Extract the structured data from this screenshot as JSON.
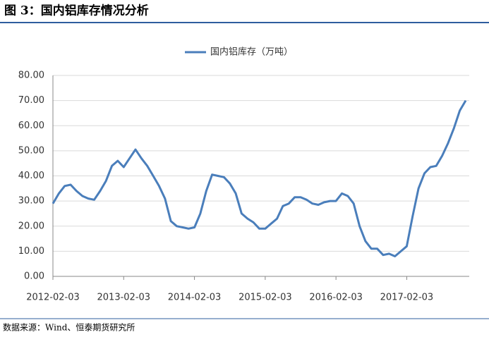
{
  "chart_data": {
    "type": "line",
    "title": "图 3：国内铝库存情况分析",
    "source": "数据来源：Wind、恒泰期货研究所",
    "categories": [
      "2012-02-03",
      null,
      null,
      null,
      null,
      null,
      null,
      null,
      null,
      null,
      null,
      null,
      "2013-02-03",
      null,
      null,
      null,
      null,
      null,
      null,
      null,
      null,
      null,
      null,
      null,
      "2014-02-03",
      null,
      null,
      null,
      null,
      null,
      null,
      null,
      null,
      null,
      null,
      null,
      "2015-02-03",
      null,
      null,
      null,
      null,
      null,
      null,
      null,
      null,
      null,
      null,
      null,
      "2016-02-03",
      null,
      null,
      null,
      null,
      null,
      null,
      null,
      null,
      null,
      null,
      null,
      "2017-02-03",
      null,
      null,
      null,
      null,
      null,
      null,
      null,
      null,
      null,
      null
    ],
    "series": [
      {
        "name": "国内铝库存（万吨）",
        "color": "#4a7ebb",
        "values": [
          29,
          33,
          36,
          36.5,
          34,
          32,
          31,
          30.5,
          34,
          38,
          44,
          46,
          43.5,
          47,
          50.5,
          47,
          44,
          40,
          36,
          31,
          22,
          20,
          19.5,
          19,
          19.5,
          25,
          34,
          40.5,
          40,
          39.5,
          37,
          33,
          25,
          23,
          21.5,
          19,
          19,
          21,
          23,
          28,
          29,
          31.5,
          31.5,
          30.5,
          29,
          28.5,
          29.5,
          30,
          30,
          33,
          32,
          29,
          20,
          14,
          11,
          11,
          8.5,
          9,
          8,
          10,
          12,
          24,
          35,
          41,
          43.5,
          44,
          48,
          53,
          59,
          66,
          70
        ]
      }
    ],
    "ylim": [
      0,
      80
    ],
    "yticks": [
      {
        "value": 0,
        "label": "0.00"
      },
      {
        "value": 10,
        "label": "10.00"
      },
      {
        "value": 20,
        "label": "20.00"
      },
      {
        "value": 30,
        "label": "30.00"
      },
      {
        "value": 40,
        "label": "40.00"
      },
      {
        "value": 50,
        "label": "50.00"
      },
      {
        "value": 60,
        "label": "60.00"
      },
      {
        "value": 70,
        "label": "70.00"
      },
      {
        "value": 80,
        "label": "80.00"
      }
    ],
    "grid": true,
    "legend": "top"
  }
}
